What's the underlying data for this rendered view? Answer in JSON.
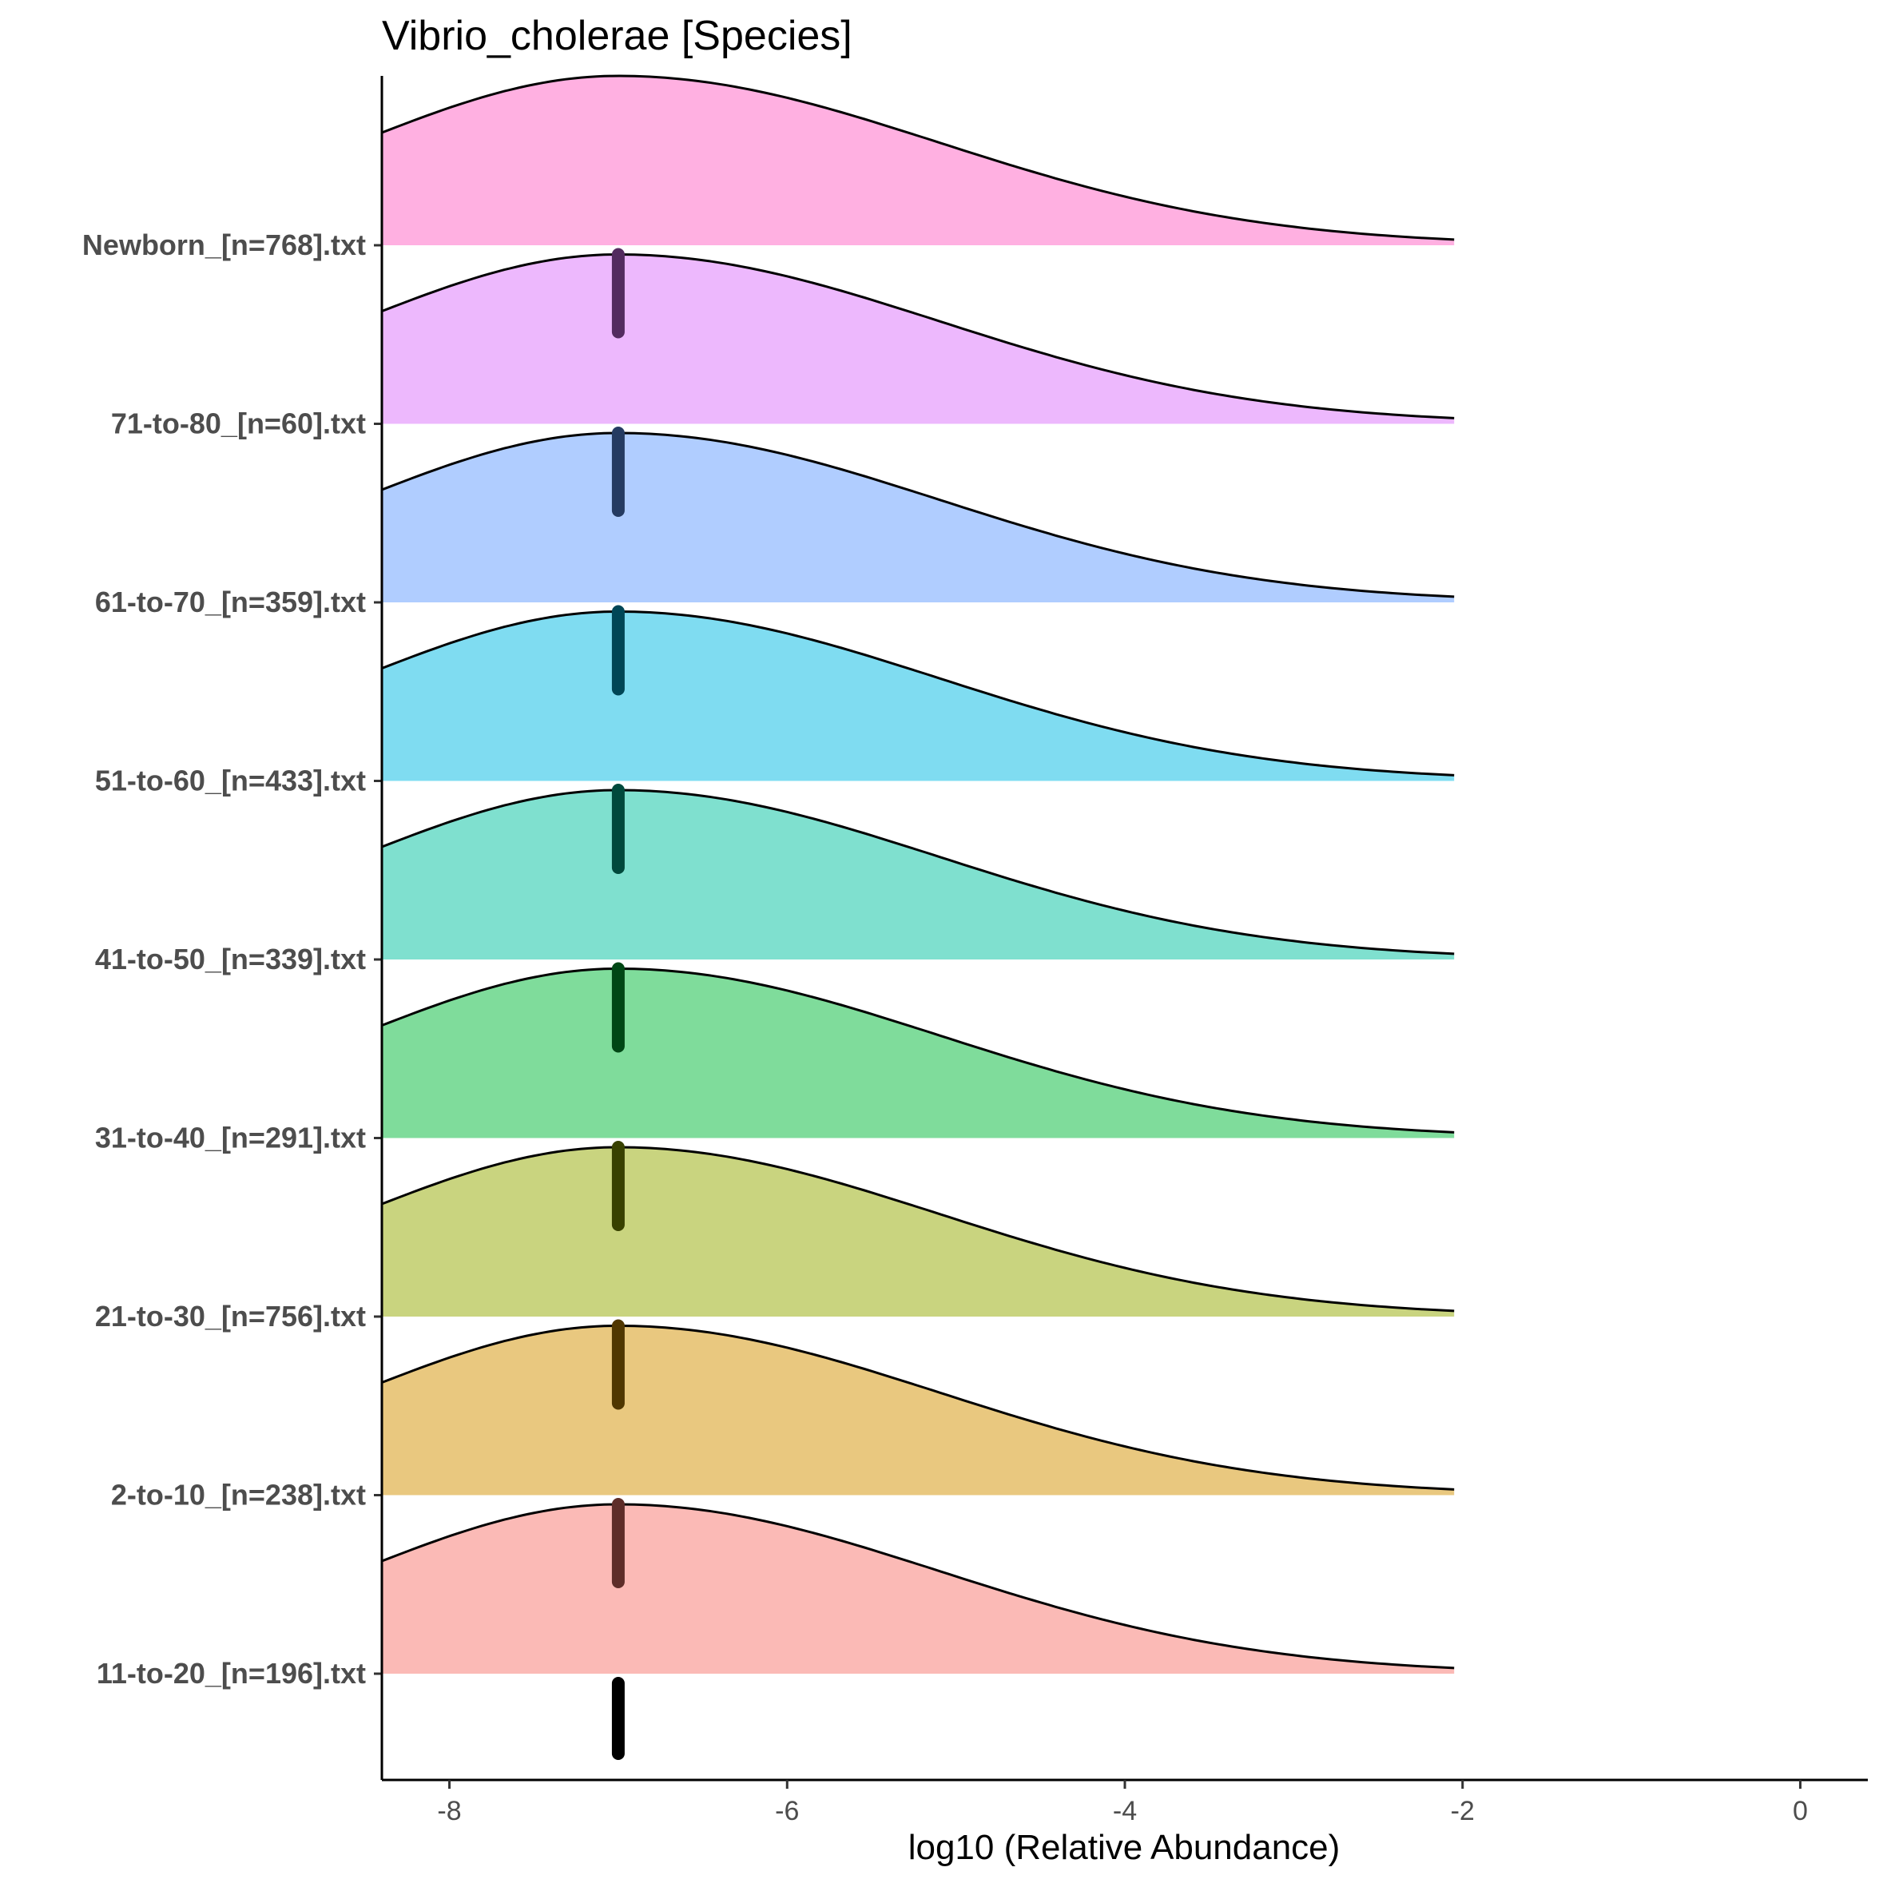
{
  "chart_data": {
    "type": "ridgeline",
    "title": "Vibrio_cholerae [Species]",
    "xlabel": "log10 (Relative Abundance)",
    "ylabel": "",
    "xlim": [
      -8.4,
      0.4
    ],
    "xticks": [
      -8,
      -6,
      -4,
      -2,
      0
    ],
    "grid": false,
    "legend": "none",
    "density": {
      "range": [
        -8.4,
        -2.05
      ],
      "mode": -7.0,
      "sd_left": 1.55,
      "sd_right": 1.9
    },
    "series": [
      {
        "name": "11-to-20_[n=196].txt",
        "color": "#f8766d",
        "marker_x": -7.0
      },
      {
        "name": "2-to-10_[n=238].txt",
        "color": "#d39200",
        "marker_x": -7.0
      },
      {
        "name": "21-to-30_[n=756].txt",
        "color": "#93aa00",
        "marker_x": -7.0
      },
      {
        "name": "31-to-40_[n=291].txt",
        "color": "#00ba38",
        "marker_x": -7.0
      },
      {
        "name": "41-to-50_[n=339].txt",
        "color": "#00c19f",
        "marker_x": -7.0
      },
      {
        "name": "51-to-60_[n=433].txt",
        "color": "#00b9e3",
        "marker_x": -7.0
      },
      {
        "name": "61-to-70_[n=359].txt",
        "color": "#619cff",
        "marker_x": -7.0
      },
      {
        "name": "71-to-80_[n=60].txt",
        "color": "#db72fb",
        "marker_x": -7.0
      },
      {
        "name": "Newborn_[n=768].txt",
        "color": "#ff61c3",
        "marker_x": null
      }
    ],
    "bottom_marker_x": -7.0
  }
}
